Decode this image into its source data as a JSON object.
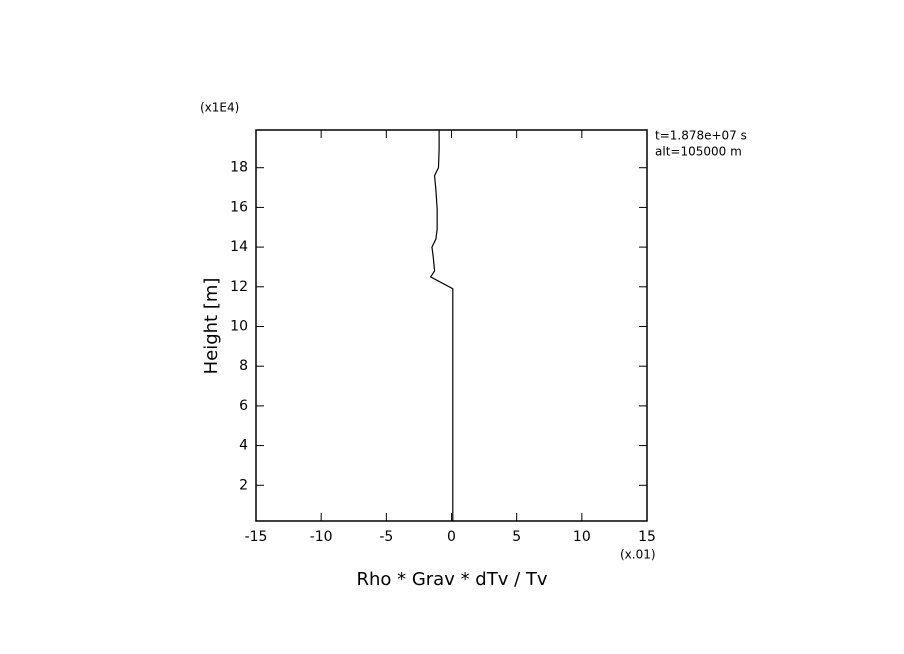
{
  "chart_data": {
    "type": "line",
    "xlabel": "Rho * Grav * dTv / Tv",
    "ylabel": "Height [m]",
    "annotations": [
      "(x1E4)",
      "(x.01)",
      "t=1.878e+07 s",
      "alt=105000 m"
    ],
    "x": [
      0.1,
      0.1,
      -1.6,
      -1.3,
      -1.4,
      -1.5,
      -1.2,
      -1.1,
      -1.1,
      -1.2,
      -1.3,
      -1.0,
      -0.95,
      -0.95
    ],
    "series": [
      {
        "color": "#000000",
        "values": [
          0.2,
          11.9,
          12.5,
          12.8,
          13.5,
          14.0,
          14.4,
          14.9,
          15.9,
          16.9,
          17.6,
          18.0,
          18.9,
          19.9
        ]
      }
    ],
    "xlim": [
      -15,
      15
    ],
    "xticks": [
      -15,
      -10,
      -5,
      0,
      5,
      10,
      15
    ],
    "ylim": [
      0.2,
      19.9
    ],
    "yticks": [
      2,
      4,
      6,
      8,
      10,
      12,
      14,
      16,
      18
    ]
  }
}
